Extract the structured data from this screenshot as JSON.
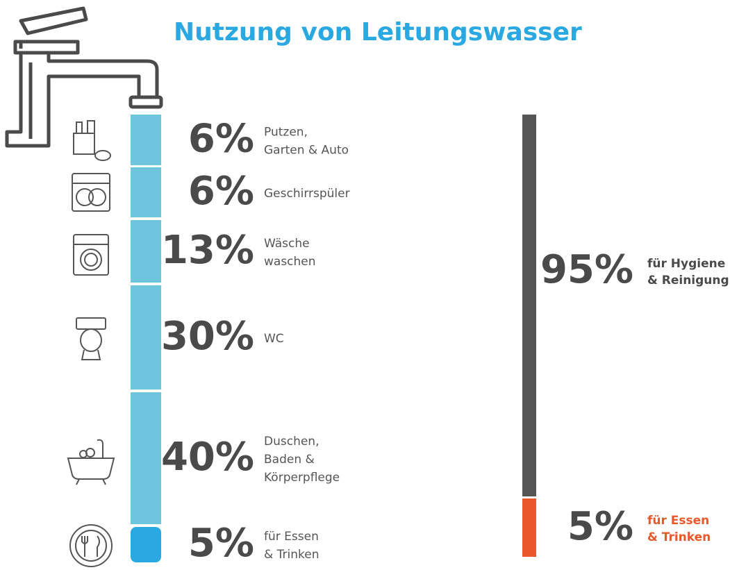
{
  "title": "Nutzung von Leitungswasser",
  "usage": [
    {
      "percent": "6%",
      "label": [
        "Putzen,",
        "Garten & Auto"
      ]
    },
    {
      "percent": "6%",
      "label": [
        "Geschirrspüler"
      ]
    },
    {
      "percent": "13%",
      "label": [
        "Wäsche",
        "waschen"
      ]
    },
    {
      "percent": "30%",
      "label": [
        "WC"
      ]
    },
    {
      "percent": "40%",
      "label": [
        "Duschen,",
        "Baden &",
        "Körperpflege"
      ]
    },
    {
      "percent": "5%",
      "label": [
        "für Essen",
        "& Trinken"
      ]
    }
  ],
  "summary": [
    {
      "percent": "95%",
      "label": [
        "für Hygiene",
        "& Reinigung"
      ]
    },
    {
      "percent": "5%",
      "label": [
        "für Essen",
        "& Trinken"
      ]
    }
  ]
}
